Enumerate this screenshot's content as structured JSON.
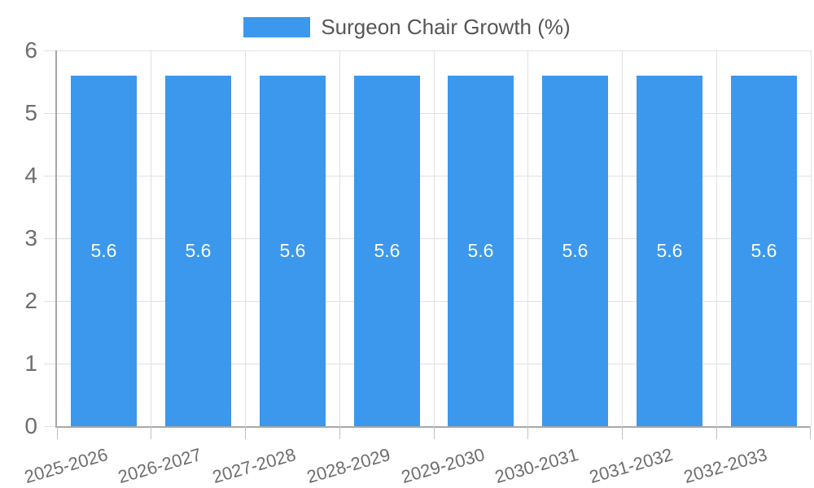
{
  "legend": {
    "label": "Surgeon Chair Growth (%)"
  },
  "colors": {
    "bar": "#3b98ec",
    "grid": "#e0e0e0",
    "axis": "#a8a8a8",
    "axis_tick": "#c0c0c0",
    "tick_text": "#6e6e6e",
    "legend_text": "#565656",
    "value_text": "#ffffff",
    "background": "#ffffff"
  },
  "chart_data": {
    "type": "bar",
    "title": "Surgeon Chair Growth (%)",
    "categories": [
      "2025-2026",
      "2026-2027",
      "2027-2028",
      "2028-2029",
      "2029-2030",
      "2030-2031",
      "2031-2032",
      "2032-2033"
    ],
    "series": [
      {
        "name": "Surgeon Chair Growth (%)",
        "values": [
          5.6,
          5.6,
          5.6,
          5.6,
          5.6,
          5.6,
          5.6,
          5.6
        ]
      }
    ],
    "values": [
      5.6,
      5.6,
      5.6,
      5.6,
      5.6,
      5.6,
      5.6,
      5.6
    ],
    "bar_labels": [
      "5.6",
      "5.6",
      "5.6",
      "5.6",
      "5.6",
      "5.6",
      "5.6",
      "5.6"
    ],
    "xlabel": "",
    "ylabel": "",
    "ylim": [
      0,
      6
    ],
    "yticks": [
      0,
      1,
      2,
      3,
      4,
      5,
      6
    ],
    "grid": true,
    "legend_position": "top-center",
    "x_label_rotation_deg": -16
  }
}
